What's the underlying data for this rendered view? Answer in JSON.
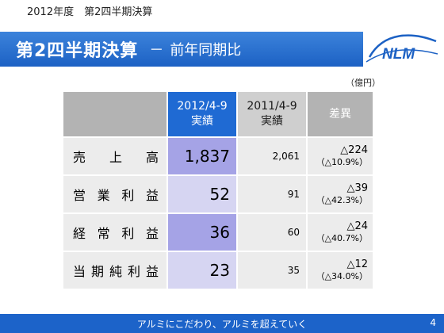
{
  "header": {
    "top_label": "2012年度　第2四半期決算",
    "title_main": "第2四半期決算",
    "title_dash": "－",
    "title_sub": "前年同期比",
    "logo_text": "NLM"
  },
  "unit_label": "（億円）",
  "table": {
    "col_current": [
      "2012/4-9",
      "実績"
    ],
    "col_previous": [
      "2011/4-9",
      "実績"
    ],
    "col_diff": "差異",
    "rows": [
      {
        "label": "売上高",
        "current": "1,837",
        "previous": "2,061",
        "diff": "△224",
        "diff_pct": "（△10.9%）"
      },
      {
        "label": "営業利益",
        "current": "52",
        "previous": "91",
        "diff": "△39",
        "diff_pct": "（△42.3%）"
      },
      {
        "label": "経常利益",
        "current": "36",
        "previous": "60",
        "diff": "△24",
        "diff_pct": "（△40.7%）"
      },
      {
        "label": "当期純利益",
        "current": "23",
        "previous": "35",
        "diff": "△12",
        "diff_pct": "（△34.0%）"
      }
    ]
  },
  "footer": {
    "slogan": "アルミにこだわり、アルミを超えていく",
    "page": "4"
  },
  "colors": {
    "title_bar": "#1c61c4",
    "current_dark": "#a5a3e6",
    "current_light": "#d6d5f2",
    "header_blue": "#1f6ad3",
    "header_gray": "#b3b3b3",
    "footer": "#1c63c9"
  }
}
